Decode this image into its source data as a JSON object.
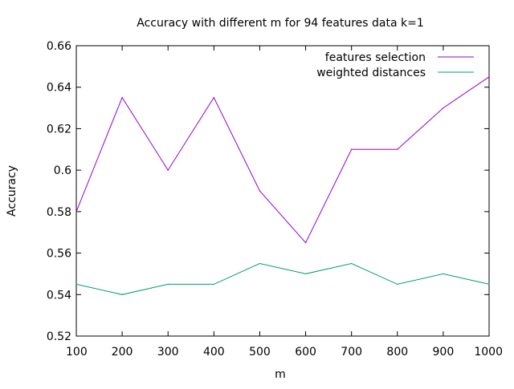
{
  "chart_data": {
    "type": "line",
    "title": "Accuracy with different m for 94 features data k=1",
    "xlabel": "m",
    "ylabel": "Accuracy",
    "xlim": [
      100,
      1000
    ],
    "ylim": [
      0.52,
      0.66
    ],
    "x_ticks": [
      100,
      200,
      300,
      400,
      500,
      600,
      700,
      800,
      900,
      1000
    ],
    "x_tick_labels": [
      "100",
      "200",
      "300",
      "400",
      "500",
      "600",
      "700",
      "800",
      "900",
      "1000"
    ],
    "y_ticks": [
      0.52,
      0.54,
      0.56,
      0.58,
      0.6,
      0.62,
      0.64,
      0.66
    ],
    "y_tick_labels": [
      "0.52",
      "0.54",
      "0.56",
      "0.58",
      "0.6",
      "0.62",
      "0.64",
      "0.66"
    ],
    "grid": false,
    "legend_position": "top-right",
    "x": [
      100,
      200,
      300,
      400,
      500,
      600,
      700,
      800,
      900,
      1000
    ],
    "series": [
      {
        "name": "features selection",
        "color": "#9400d3",
        "values": [
          0.58,
          0.635,
          0.6,
          0.635,
          0.59,
          0.565,
          0.61,
          0.61,
          0.63,
          0.645
        ]
      },
      {
        "name": "weighted distances",
        "color": "#009e73",
        "values": [
          0.545,
          0.54,
          0.545,
          0.545,
          0.555,
          0.55,
          0.555,
          0.545,
          0.55,
          0.545
        ]
      }
    ]
  }
}
